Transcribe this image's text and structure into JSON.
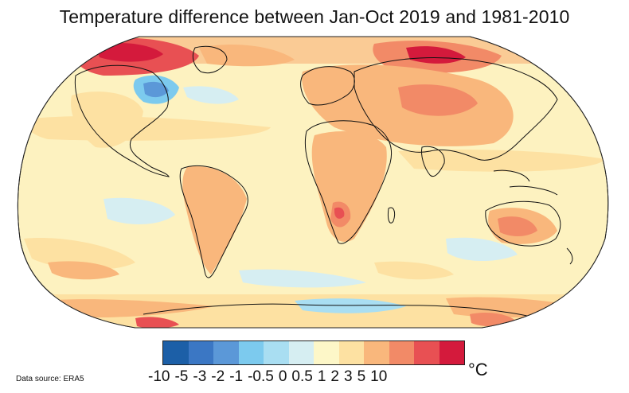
{
  "title": "Temperature difference between Jan-Oct 2019 and 1981-2010",
  "source": "Data source: ERA5",
  "unit": "°C",
  "colorbar": {
    "tick_labels": [
      "-10",
      "-5",
      "-3",
      "-2",
      "-1",
      "-0.5",
      "0",
      "0.5",
      "1",
      "2",
      "3",
      "5",
      "10"
    ],
    "colors": [
      "#1c5fa7",
      "#3b77c4",
      "#5b98d8",
      "#7ccaee",
      "#a9def2",
      "#d6eef2",
      "#fdf7c8",
      "#fde1a2",
      "#f9b77c",
      "#f28a67",
      "#e85053",
      "#d41a3c",
      "#b5102b"
    ]
  },
  "map": {
    "projection": "Robinson",
    "ocean_base_color": "#fdf2c0",
    "land_outline_color": "#111111"
  }
}
